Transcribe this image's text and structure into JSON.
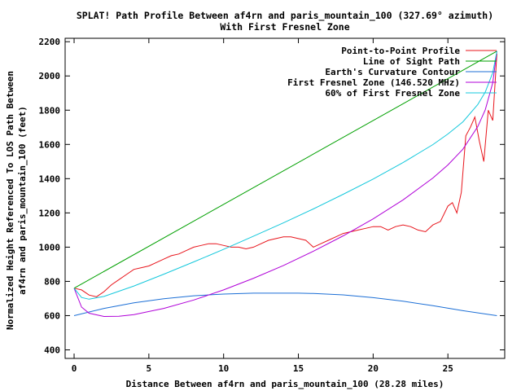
{
  "chart_data": {
    "type": "line",
    "title": "SPLAT! Path Profile Between af4rn and paris_mountain_100 (327.69° azimuth)",
    "subtitle": "With First Fresnel Zone",
    "xlabel": "Distance Between af4rn and paris_mountain_100 (28.28 miles)",
    "ylabel_line1": "Normalized Height Referenced To LOS Path Between",
    "ylabel_line2": "af4rn and paris_mountain_100 (feet)",
    "xlim": [
      -0.6,
      28.8
    ],
    "ylim": [
      350,
      2220
    ],
    "xticks": [
      0,
      5,
      10,
      15,
      20,
      25
    ],
    "xtick_labels": [
      "0",
      "5",
      "10",
      "15",
      "20",
      "25"
    ],
    "yticks": [
      400,
      600,
      800,
      1000,
      1200,
      1400,
      1600,
      1800,
      2000,
      2200
    ],
    "ytick_labels": [
      "400",
      "600",
      "800",
      "1000",
      "1200",
      "1400",
      "1600",
      "1800",
      "2000",
      "2200"
    ],
    "legend_position": "top-right",
    "series": [
      {
        "name": "Point-to-Point Profile",
        "color": "#e8141b",
        "x": [
          0,
          0.5,
          1.0,
          1.5,
          2.0,
          2.5,
          3.0,
          3.5,
          4.0,
          4.5,
          5.0,
          5.5,
          6.0,
          6.5,
          7.0,
          7.5,
          8.0,
          8.5,
          9.0,
          9.5,
          10.0,
          10.5,
          11.0,
          11.5,
          12.0,
          12.5,
          13.0,
          13.5,
          14.0,
          14.5,
          15.0,
          15.5,
          16.0,
          16.5,
          17.0,
          17.5,
          18.0,
          18.5,
          19.0,
          19.5,
          20.0,
          20.5,
          21.0,
          21.5,
          22.0,
          22.5,
          23.0,
          23.5,
          24.0,
          24.5,
          25.0,
          25.3,
          25.6,
          25.9,
          26.2,
          26.5,
          26.8,
          27.1,
          27.4,
          27.7,
          28.0,
          28.28
        ],
        "values": [
          760,
          750,
          720,
          710,
          740,
          780,
          810,
          840,
          870,
          880,
          890,
          910,
          930,
          950,
          960,
          980,
          1000,
          1010,
          1020,
          1020,
          1010,
          1000,
          1000,
          990,
          1000,
          1020,
          1040,
          1050,
          1060,
          1060,
          1050,
          1040,
          1000,
          1020,
          1040,
          1060,
          1080,
          1090,
          1100,
          1110,
          1120,
          1120,
          1100,
          1120,
          1130,
          1120,
          1100,
          1090,
          1130,
          1150,
          1240,
          1260,
          1200,
          1320,
          1650,
          1700,
          1760,
          1620,
          1500,
          1800,
          1740,
          2130
        ]
      },
      {
        "name": "Line of Sight Path",
        "color": "#00a000",
        "x": [
          0,
          28.28
        ],
        "values": [
          760,
          2145
        ]
      },
      {
        "name": "Earth's Curvature Contour",
        "color": "#1c6fd6",
        "x": [
          0,
          2,
          4,
          6,
          8,
          10,
          12,
          14,
          15,
          16,
          18,
          20,
          22,
          24,
          26,
          28.28
        ],
        "values": [
          600,
          642,
          675,
          699,
          716,
          726,
          731,
          731,
          731,
          729,
          721,
          705,
          684,
          658,
          629,
          600
        ]
      },
      {
        "name": "First Fresnel Zone (146.520 MHz)",
        "color": "#b000d8",
        "x": [
          0,
          0.5,
          1,
          2,
          3,
          4,
          6,
          8,
          10,
          12,
          14,
          16,
          18,
          20,
          22,
          24,
          25,
          26,
          27,
          27.5,
          28,
          28.28
        ],
        "values": [
          760,
          650,
          614,
          595,
          596,
          606,
          642,
          691,
          750,
          818,
          893,
          976,
          1066,
          1165,
          1276,
          1404,
          1480,
          1572,
          1704,
          1802,
          1960,
          2145
        ]
      },
      {
        "name": "60% of First Fresnel Zone",
        "color": "#14c8dc",
        "x": [
          0,
          0.5,
          1,
          2,
          4,
          6,
          8,
          10,
          12,
          14,
          16,
          18,
          20,
          22,
          24,
          25,
          26,
          27,
          27.5,
          28,
          28.28
        ],
        "values": [
          760,
          706,
          696,
          712,
          773,
          842,
          914,
          987,
          1064,
          1142,
          1223,
          1309,
          1398,
          1494,
          1599,
          1661,
          1732,
          1833,
          1906,
          2019,
          2145
        ]
      }
    ]
  }
}
